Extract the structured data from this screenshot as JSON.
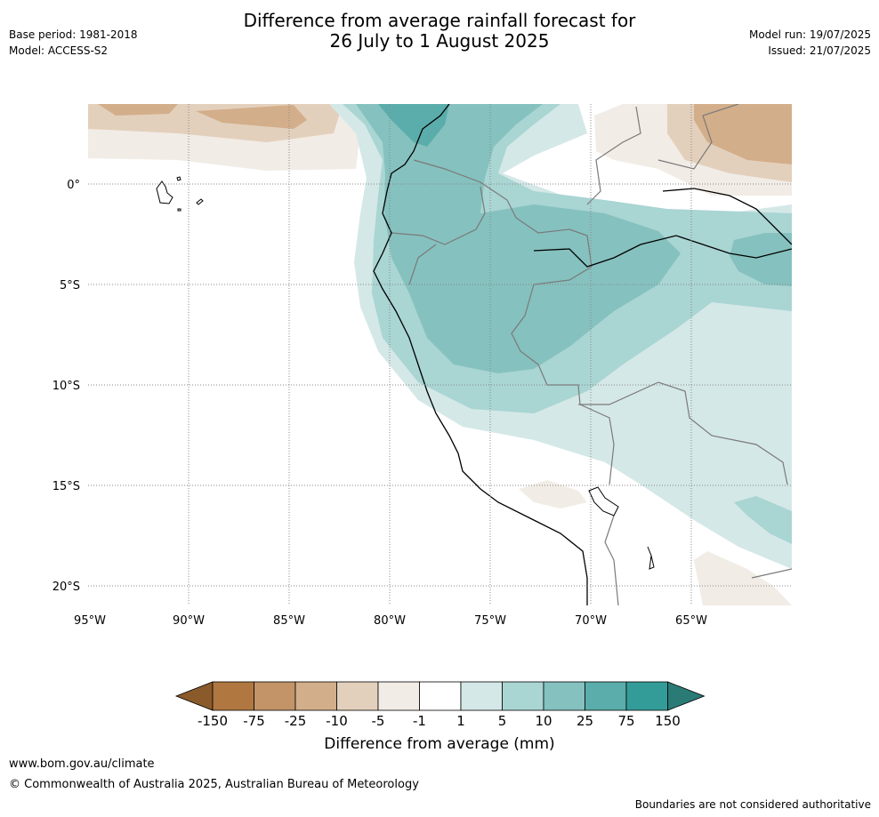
{
  "header": {
    "title_line1": "Difference from average rainfall forecast for",
    "title_line2": "26 July to 1 August 2025",
    "base_period": "Base period: 1981-2018",
    "model": "Model: ACCESS-S2",
    "model_run": "Model run: 19/07/2025",
    "issued": "Issued: 21/07/2025"
  },
  "map": {
    "lat_labels": [
      "0°",
      "5°S",
      "10°S",
      "15°S",
      "20°S"
    ],
    "lon_labels": [
      "95°W",
      "90°W",
      "85°W",
      "80°W",
      "75°W",
      "70°W",
      "65°W"
    ]
  },
  "colorbar": {
    "label": "Difference from average (mm)",
    "ticks": [
      "-150",
      "-75",
      "-25",
      "-10",
      "-5",
      "-1",
      "1",
      "5",
      "10",
      "25",
      "75",
      "150"
    ],
    "colors": [
      "#8b5a2b",
      "#b07840",
      "#c39468",
      "#d3ae8a",
      "#e3d0bc",
      "#f1ece6",
      "#ffffff",
      "#d4e8e7",
      "#a9d5d3",
      "#85c1bf",
      "#5aadaa",
      "#349c98",
      "#2a7a76"
    ]
  },
  "footer": {
    "url": "www.bom.gov.au/climate",
    "copyright": "© Commonwealth of Australia 2025, Australian Bureau of Meteorology",
    "disclaimer": "Boundaries are not considered authoritative"
  }
}
